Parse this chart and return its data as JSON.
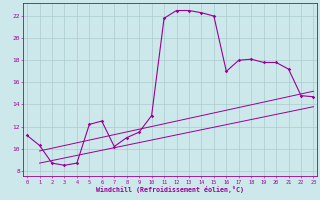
{
  "bg_color": "#cce8ea",
  "grid_color": "#aacccc",
  "line_color": "#990099",
  "xlim": [
    -0.3,
    23.3
  ],
  "ylim": [
    7.5,
    23.2
  ],
  "xticks": [
    0,
    1,
    2,
    3,
    4,
    5,
    6,
    7,
    8,
    9,
    10,
    11,
    12,
    13,
    14,
    15,
    16,
    17,
    18,
    19,
    20,
    21,
    22,
    23
  ],
  "yticks": [
    8,
    10,
    12,
    14,
    16,
    18,
    20,
    22
  ],
  "xlabel": "Windchill (Refroidissement éolien,°C)",
  "main_x": [
    0,
    1,
    2,
    3,
    4,
    5,
    6,
    7,
    8,
    9,
    10,
    11,
    12,
    13,
    14,
    15,
    16,
    17,
    18,
    19,
    20,
    21,
    22,
    23
  ],
  "main_y": [
    11.2,
    10.3,
    8.7,
    8.5,
    8.7,
    12.2,
    12.5,
    10.2,
    11.0,
    11.5,
    13.0,
    21.8,
    22.5,
    22.5,
    22.3,
    22.0,
    17.0,
    18.0,
    18.1,
    17.8,
    17.8,
    17.2,
    14.8,
    14.7
  ],
  "line1_x": [
    1,
    23
  ],
  "line1_y": [
    9.8,
    15.2
  ],
  "line2_x": [
    1,
    23
  ],
  "line2_y": [
    8.7,
    13.8
  ],
  "marker_x": [
    0,
    1,
    2,
    3,
    4,
    5,
    6,
    7,
    8,
    9,
    10,
    11,
    12,
    13,
    14,
    15,
    16,
    17,
    18,
    19,
    20,
    21,
    22,
    23
  ],
  "marker_y": [
    11.2,
    10.3,
    8.7,
    8.5,
    8.7,
    12.2,
    12.5,
    10.2,
    11.0,
    11.5,
    13.0,
    21.8,
    22.5,
    22.5,
    22.3,
    22.0,
    17.0,
    18.0,
    18.1,
    17.8,
    17.8,
    17.2,
    14.8,
    14.7
  ]
}
